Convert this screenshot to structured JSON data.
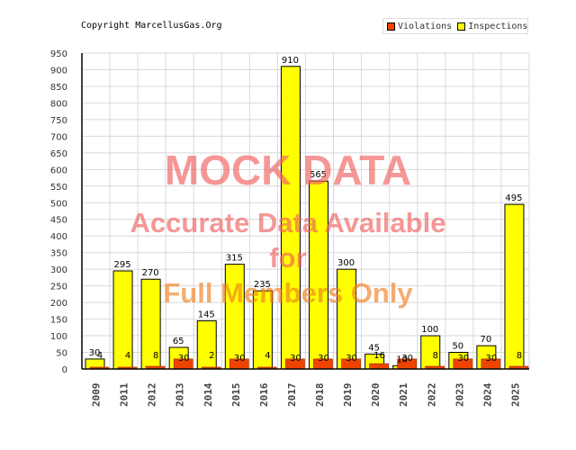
{
  "copyright": "Copyright MarcellusGas.Org",
  "legend": {
    "items": [
      {
        "label": "Violations",
        "color": "#ee4400"
      },
      {
        "label": "Inspections",
        "color": "#ffff00"
      }
    ]
  },
  "watermark": {
    "line1": "MOCK DATA",
    "line2": "Accurate Data Available",
    "line3": "for",
    "line4": "Full Members Only"
  },
  "chart_data": {
    "type": "bar",
    "title": "",
    "xlabel": "",
    "ylabel": "",
    "ylim": [
      0,
      950
    ],
    "yticks": [
      0,
      50,
      100,
      150,
      200,
      250,
      300,
      350,
      400,
      450,
      500,
      550,
      600,
      650,
      700,
      750,
      800,
      850,
      900,
      950
    ],
    "grid": true,
    "legend_position": "top-right",
    "categories": [
      "2009",
      "2011",
      "2012",
      "2013",
      "2014",
      "2015",
      "2016",
      "2017",
      "2018",
      "2019",
      "2020",
      "2021",
      "2022",
      "2023",
      "2024",
      "2025"
    ],
    "series": [
      {
        "name": "Inspections",
        "color": "#ffff00",
        "values": [
          30,
          295,
          270,
          65,
          145,
          315,
          235,
          910,
          565,
          300,
          45,
          10,
          100,
          50,
          70,
          495
        ]
      },
      {
        "name": "Violations",
        "color": "#ee4400",
        "values": [
          4,
          4,
          8,
          30,
          2,
          30,
          4,
          30,
          30,
          30,
          16,
          30,
          8,
          30,
          30,
          8
        ]
      }
    ]
  }
}
